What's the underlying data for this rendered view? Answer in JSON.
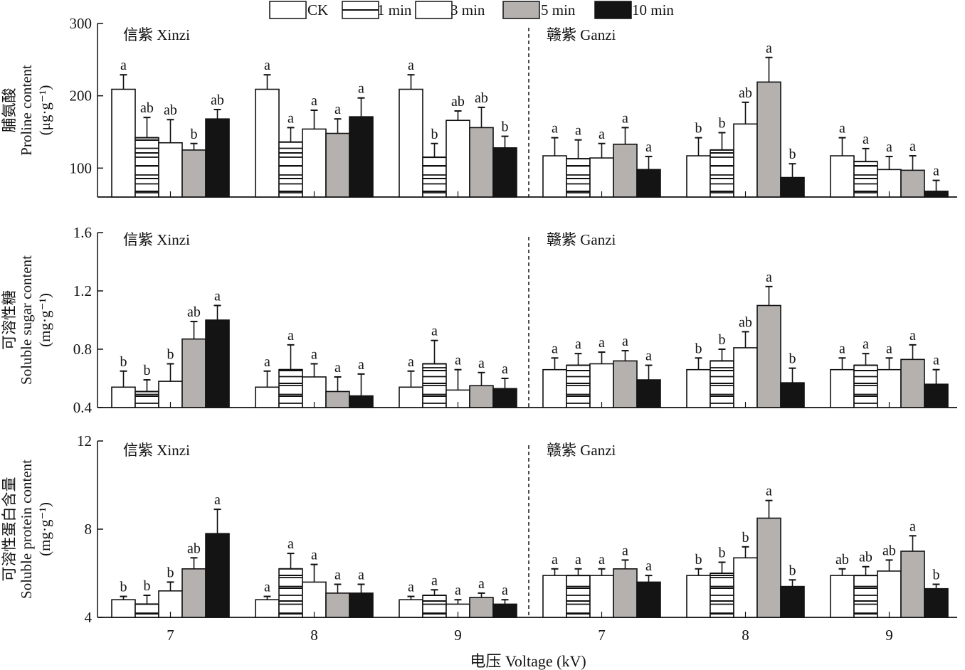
{
  "chart_data": {
    "type": "bar",
    "legend": {
      "placement": "top-center",
      "entries": [
        {
          "name": "CK",
          "fill": "#ffffff",
          "pattern": "none"
        },
        {
          "name": "1 min",
          "fill": "#ffffff",
          "pattern": "horizontal-lines"
        },
        {
          "name": "3 min",
          "fill": "#ffffff",
          "pattern": "none"
        },
        {
          "name": "5 min",
          "fill": "#b5b1ae",
          "pattern": "none"
        },
        {
          "name": "10 min",
          "fill": "#141414",
          "pattern": "none"
        }
      ]
    },
    "groups": [
      "信紫 Xinzi",
      "赣紫 Ganzi"
    ],
    "categories": [
      "7",
      "8",
      "9",
      "7",
      "8",
      "9"
    ],
    "xlabel": "电压 Voltage (kV)",
    "panels": [
      {
        "id": "proline",
        "ylabel_cn": "脯氨酸",
        "ylabel_en": "Proline content",
        "ylabel_unit": "(μg·g⁻¹)",
        "ylim": [
          60,
          300
        ],
        "yticks": [
          100,
          200,
          300
        ],
        "series": [
          {
            "name": "CK",
            "values": [
              209,
              209,
              209,
              117,
              117,
              117
            ],
            "errors": [
              20,
              20,
              20,
              25,
              25,
              25
            ],
            "letters": [
              "a",
              "a",
              "a",
              "a",
              "b",
              "a"
            ]
          },
          {
            "name": "1 min",
            "values": [
              142,
              136,
              115,
              113,
              125,
              109
            ],
            "errors": [
              28,
              20,
              19,
              26,
              24,
              18
            ],
            "letters": [
              "ab",
              "a",
              "b",
              "a",
              "b",
              "a"
            ]
          },
          {
            "name": "3 min",
            "values": [
              135,
              154,
              166,
              114,
              161,
              98
            ],
            "errors": [
              32,
              26,
              13,
              20,
              30,
              18
            ],
            "letters": [
              "ab",
              "a",
              "ab",
              "a",
              "ab",
              "a"
            ]
          },
          {
            "name": "5 min",
            "values": [
              125,
              148,
              156,
              133,
              219,
              97
            ],
            "errors": [
              9,
              20,
              28,
              23,
              34,
              20
            ],
            "letters": [
              "b",
              "a",
              "ab",
              "a",
              "a",
              "a"
            ]
          },
          {
            "name": "10 min",
            "values": [
              168,
              171,
              128,
              98,
              87,
              68
            ],
            "errors": [
              13,
              26,
              16,
              18,
              19,
              15
            ],
            "letters": [
              "ab",
              "a",
              "b",
              "a",
              "b",
              "a"
            ]
          }
        ]
      },
      {
        "id": "soluble-sugar",
        "ylabel_cn": "可溶性糖",
        "ylabel_en": "Soluble sugar content",
        "ylabel_unit": "(mg·g⁻¹)",
        "ylim": [
          0.4,
          1.6
        ],
        "yticks": [
          0.4,
          0.8,
          1.2,
          1.6
        ],
        "series": [
          {
            "name": "CK",
            "values": [
              0.54,
              0.54,
              0.54,
              0.66,
              0.66,
              0.66
            ],
            "errors": [
              0.11,
              0.11,
              0.11,
              0.08,
              0.08,
              0.08
            ],
            "letters": [
              "b",
              "a",
              "a",
              "a",
              "b",
              "a"
            ]
          },
          {
            "name": "1 min",
            "values": [
              0.51,
              0.66,
              0.7,
              0.69,
              0.72,
              0.69
            ],
            "errors": [
              0.08,
              0.17,
              0.16,
              0.08,
              0.08,
              0.08
            ],
            "letters": [
              "b",
              "a",
              "a",
              "a",
              "b",
              "a"
            ]
          },
          {
            "name": "3 min",
            "values": [
              0.58,
              0.61,
              0.52,
              0.7,
              0.81,
              0.66
            ],
            "errors": [
              0.12,
              0.09,
              0.14,
              0.08,
              0.11,
              0.08
            ],
            "letters": [
              "b",
              "a",
              "a",
              "a",
              "ab",
              "a"
            ]
          },
          {
            "name": "5 min",
            "values": [
              0.87,
              0.51,
              0.55,
              0.72,
              1.1,
              0.73
            ],
            "errors": [
              0.12,
              0.1,
              0.09,
              0.07,
              0.13,
              0.1
            ],
            "letters": [
              "ab",
              "a",
              "a",
              "a",
              "a",
              "a"
            ]
          },
          {
            "name": "10 min",
            "values": [
              1.0,
              0.48,
              0.53,
              0.59,
              0.57,
              0.56
            ],
            "errors": [
              0.1,
              0.15,
              0.07,
              0.1,
              0.1,
              0.1
            ],
            "letters": [
              "a",
              "a",
              "a",
              "a",
              "b",
              "a"
            ]
          }
        ]
      },
      {
        "id": "soluble-protein",
        "ylabel_cn": "可溶性蛋白含量",
        "ylabel_en": "Soluble protein content",
        "ylabel_unit": "(mg·g⁻¹)",
        "ylim": [
          4,
          12
        ],
        "yticks": [
          4,
          8,
          12
        ],
        "series": [
          {
            "name": "CK",
            "values": [
              4.8,
              4.8,
              4.8,
              5.9,
              5.9,
              5.9
            ],
            "errors": [
              0.15,
              0.15,
              0.15,
              0.3,
              0.3,
              0.3
            ],
            "letters": [
              "b",
              "a",
              "a",
              "a",
              "b",
              "ab"
            ]
          },
          {
            "name": "1 min",
            "values": [
              4.6,
              6.2,
              5.0,
              5.9,
              6.0,
              5.9
            ],
            "errors": [
              0.4,
              0.7,
              0.25,
              0.3,
              0.5,
              0.4
            ],
            "letters": [
              "b",
              "a",
              "a",
              "a",
              "b",
              "ab"
            ]
          },
          {
            "name": "3 min",
            "values": [
              5.2,
              5.6,
              4.6,
              5.9,
              6.7,
              6.1
            ],
            "errors": [
              0.4,
              0.8,
              0.2,
              0.3,
              0.5,
              0.5
            ],
            "letters": [
              "b",
              "a",
              "a",
              "a",
              "b",
              "ab"
            ]
          },
          {
            "name": "5 min",
            "values": [
              6.2,
              5.1,
              4.9,
              6.2,
              8.5,
              7.0
            ],
            "errors": [
              0.5,
              0.4,
              0.2,
              0.4,
              0.8,
              0.7
            ],
            "letters": [
              "ab",
              "a",
              "a",
              "a",
              "a",
              "a"
            ]
          },
          {
            "name": "10 min",
            "values": [
              7.8,
              5.1,
              4.6,
              5.6,
              5.4,
              5.3
            ],
            "errors": [
              1.1,
              0.4,
              0.2,
              0.3,
              0.3,
              0.2
            ],
            "letters": [
              "a",
              "a",
              "a",
              "a",
              "b",
              "b"
            ]
          }
        ]
      }
    ]
  }
}
